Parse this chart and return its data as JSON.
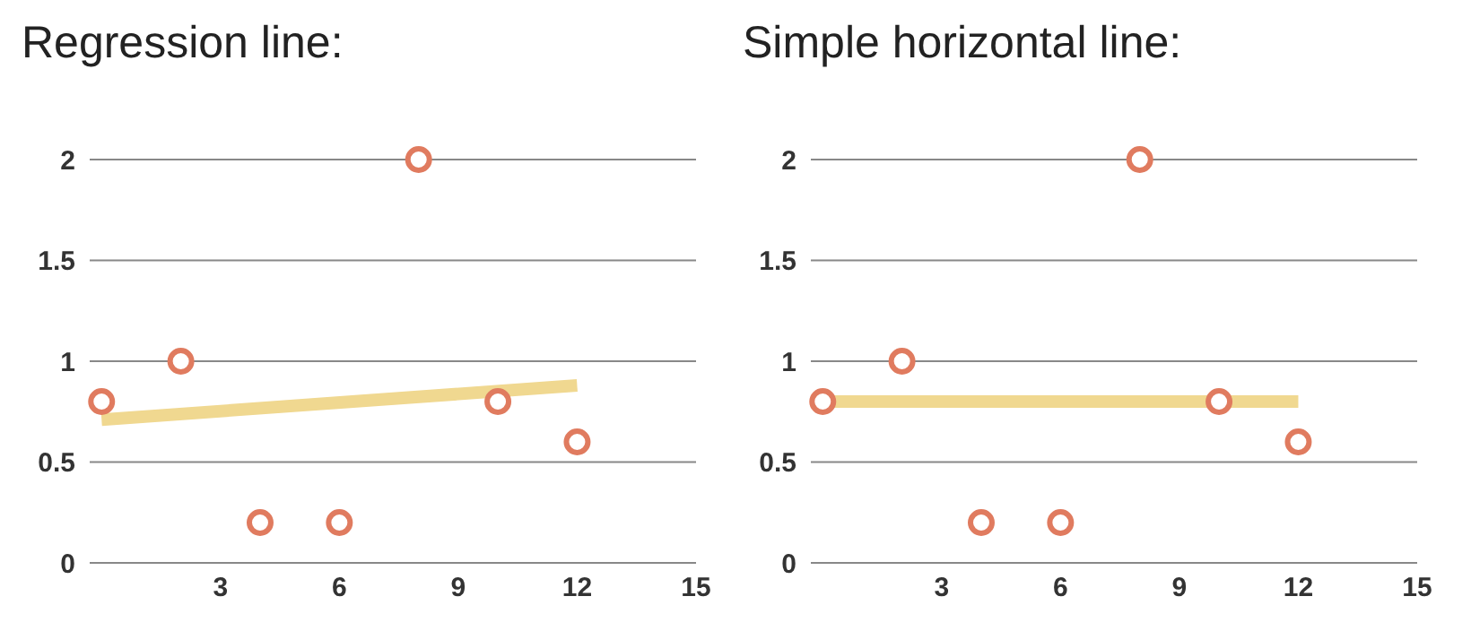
{
  "chart_data": [
    {
      "type": "scatter",
      "title": "Regression line:",
      "xlim": [
        -0.3,
        15
      ],
      "xticks": [
        3,
        6,
        9,
        12,
        15
      ],
      "ylim": [
        0,
        2
      ],
      "yticks": [
        0,
        0.5,
        1,
        1.5,
        2
      ],
      "grid": "y",
      "series": [
        {
          "color": "#e07b5f",
          "marker": "circle",
          "x": [
            0,
            2,
            4,
            6,
            8,
            10,
            12
          ],
          "values": [
            0.8,
            1,
            0.2,
            0.2,
            2,
            0.8,
            0.6
          ]
        },
        {
          "type": "line",
          "color": "#f0d890",
          "marker": "none",
          "x": [
            0,
            12
          ],
          "values": [
            0.71,
            0.88
          ]
        }
      ]
    },
    {
      "type": "scatter",
      "title": "Simple horizontal line:",
      "xlim": [
        -0.3,
        15
      ],
      "xticks": [
        3,
        6,
        9,
        12,
        15
      ],
      "ylim": [
        0,
        2
      ],
      "yticks": [
        0,
        0.5,
        1,
        1.5,
        2
      ],
      "grid": "y",
      "series": [
        {
          "type": "line",
          "color": "#f0d890",
          "marker": "none",
          "x": [
            0,
            12
          ],
          "values": [
            0.8,
            0.8
          ]
        },
        {
          "color": "#e07b5f",
          "marker": "circle",
          "x": [
            0,
            2,
            4,
            6,
            8,
            10,
            12
          ],
          "values": [
            0.8,
            1,
            0.2,
            0.2,
            2,
            0.8,
            0.6
          ]
        }
      ]
    }
  ]
}
